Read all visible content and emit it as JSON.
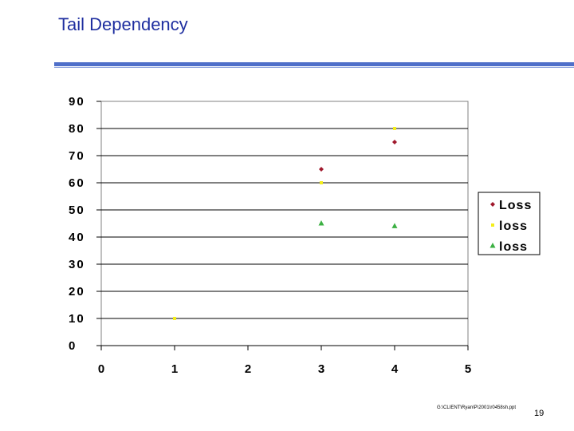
{
  "slide": {
    "title": "Tail Dependency",
    "footer_path": "G:\\CLIENT\\Ryan\\P\\2001\\r0458sh.ppt",
    "page_number": "19",
    "rule_color": "#4f6fc9"
  },
  "chart_data": {
    "type": "scatter",
    "title": "",
    "xlabel": "",
    "ylabel": "",
    "xlim": [
      0,
      5
    ],
    "ylim": [
      0,
      90
    ],
    "x_ticks": [
      "0",
      "1",
      "2",
      "3",
      "4",
      "5"
    ],
    "y_ticks": [
      "0",
      "10",
      "20",
      "30",
      "40",
      "50",
      "60",
      "70",
      "80",
      "90"
    ],
    "grid": "horizontal",
    "legend_position": "right",
    "series": [
      {
        "name": "Loss",
        "marker": "diamond",
        "color": "#a0182c",
        "points": [
          [
            3,
            65
          ],
          [
            4,
            75
          ]
        ]
      },
      {
        "name": "loss",
        "marker": "square",
        "color": "#f4ee1c",
        "points": [
          [
            1,
            10
          ],
          [
            3,
            60
          ],
          [
            4,
            80
          ]
        ]
      },
      {
        "name": "loss",
        "marker": "triangle",
        "color": "#3cb043",
        "points": [
          [
            3,
            45
          ],
          [
            4,
            44
          ]
        ]
      }
    ]
  }
}
